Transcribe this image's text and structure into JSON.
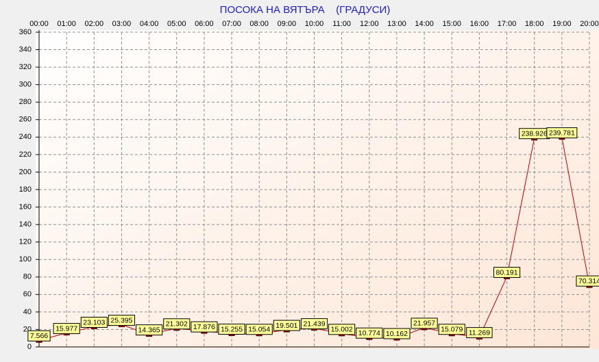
{
  "chart_data": {
    "type": "line",
    "title": "ПОСОКА НА ВЯТЪРА    (ГРАДУСИ)",
    "categories": [
      "00:00",
      "01:00",
      "02:00",
      "03:00",
      "04:00",
      "05:00",
      "06:00",
      "07:00",
      "08:00",
      "09:00",
      "10:00",
      "11:00",
      "12:00",
      "13:00",
      "14:00",
      "15:00",
      "16:00",
      "17:00",
      "18:00",
      "19:00",
      "20:00"
    ],
    "values": [
      7.566,
      15.977,
      23.103,
      25.395,
      14.365,
      21.302,
      17.876,
      15.255,
      15.054,
      19.501,
      21.439,
      15.002,
      10.774,
      10.162,
      21.957,
      15.079,
      11.269,
      80.191,
      238.926,
      239.781,
      70.314
    ],
    "color": "#c00000",
    "ylim": [
      0,
      360
    ],
    "yticks": [
      0,
      20,
      40,
      60,
      80,
      100,
      120,
      140,
      160,
      180,
      200,
      220,
      240,
      260,
      280,
      300,
      320,
      340,
      360
    ],
    "grid": true
  }
}
